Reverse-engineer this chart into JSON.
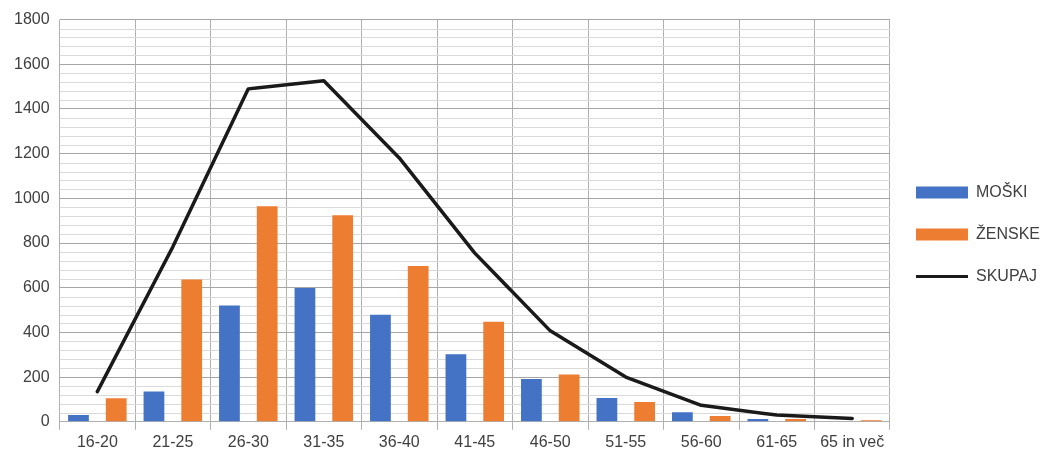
{
  "chart_data": {
    "type": "bar",
    "categories": [
      "16-20",
      "21-25",
      "26-30",
      "31-35",
      "36-40",
      "41-45",
      "46-50",
      "51-55",
      "56-60",
      "61-65",
      "65 in več"
    ],
    "series": [
      {
        "name": "MOŠKI",
        "color": "#4472c4",
        "values": [
          30,
          136,
          520,
          599,
          479,
          302,
          192,
          107,
          43,
          13,
          null
        ]
      },
      {
        "name": "ŽENSKE",
        "color": "#ed7d31",
        "values": [
          105,
          637,
          965,
          924,
          697,
          448,
          212,
          89,
          26,
          13,
          7
        ]
      },
      {
        "name": "SKUPAJ",
        "type": "line",
        "color": "#1a1a1a",
        "values": [
          135,
          783,
          1490,
          1526,
          1181,
          755,
          407,
          200,
          74,
          30,
          15
        ]
      }
    ],
    "ylim": [
      0,
      1800
    ],
    "yticks": [
      0,
      200,
      400,
      600,
      800,
      1000,
      1200,
      1400,
      1600,
      1800
    ],
    "grid": true,
    "legend": "right",
    "marker": "none"
  }
}
